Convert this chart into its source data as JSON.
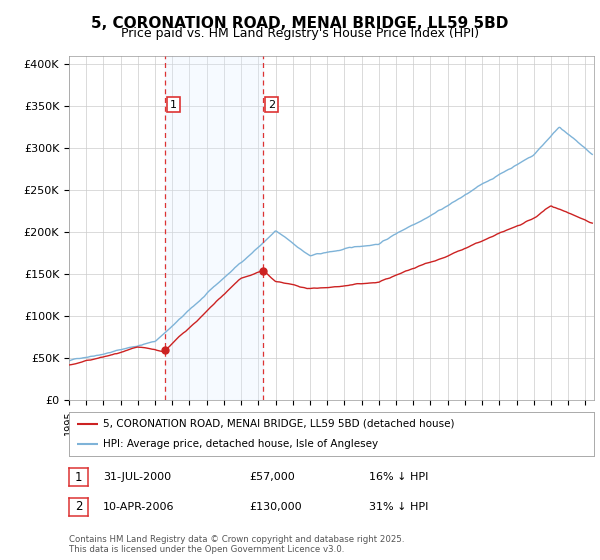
{
  "title": "5, CORONATION ROAD, MENAI BRIDGE, LL59 5BD",
  "subtitle": "Price paid vs. HM Land Registry's House Price Index (HPI)",
  "ylabel_ticks": [
    "£0",
    "£50K",
    "£100K",
    "£150K",
    "£200K",
    "£250K",
    "£300K",
    "£350K",
    "£400K"
  ],
  "ytick_values": [
    0,
    50000,
    100000,
    150000,
    200000,
    250000,
    300000,
    350000,
    400000
  ],
  "ylim": [
    0,
    410000
  ],
  "xlim_start": 1995.0,
  "xlim_end": 2025.5,
  "hpi_color": "#7eb3d8",
  "price_color": "#cc2222",
  "dashed_color": "#dd3333",
  "shade_color": "#ddeeff",
  "marker1_x": 2000.58,
  "marker1_y": 57000,
  "marker1_label": "1",
  "marker2_x": 2006.27,
  "marker2_y": 130000,
  "marker2_label": "2",
  "legend_line1": "5, CORONATION ROAD, MENAI BRIDGE, LL59 5BD (detached house)",
  "legend_line2": "HPI: Average price, detached house, Isle of Anglesey",
  "table_row1": [
    "1",
    "31-JUL-2000",
    "£57,000",
    "16% ↓ HPI"
  ],
  "table_row2": [
    "2",
    "10-APR-2006",
    "£130,000",
    "31% ↓ HPI"
  ],
  "footnote": "Contains HM Land Registry data © Crown copyright and database right 2025.\nThis data is licensed under the Open Government Licence v3.0.",
  "background_color": "#ffffff",
  "grid_color": "#cccccc",
  "title_fontsize": 11,
  "subtitle_fontsize": 9,
  "tick_fontsize": 8
}
